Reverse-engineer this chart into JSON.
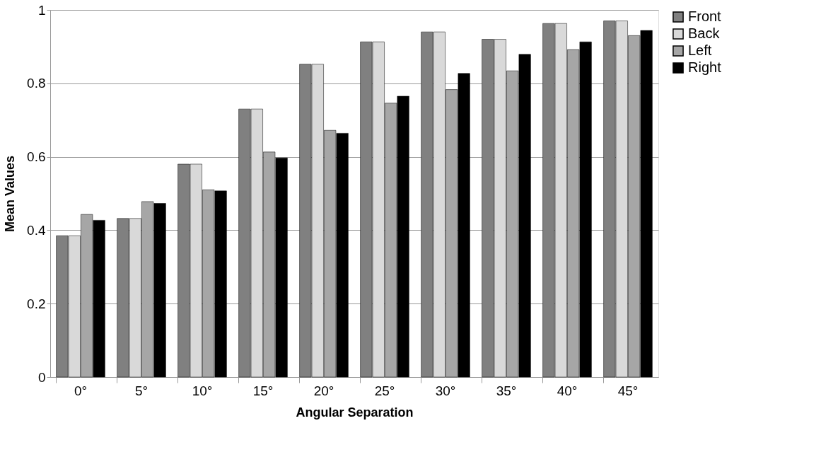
{
  "chart_data": {
    "type": "bar",
    "xlabel": "Angular Separation",
    "ylabel": "Mean Values",
    "categories": [
      "0°",
      "5°",
      "10°",
      "15°",
      "20°",
      "25°",
      "30°",
      "35°",
      "40°",
      "45°"
    ],
    "series": [
      {
        "name": "Front",
        "color": "#808080",
        "values": [
          0.385,
          0.432,
          0.58,
          0.73,
          0.852,
          0.913,
          0.94,
          0.92,
          0.963,
          0.97
        ]
      },
      {
        "name": "Back",
        "color": "#d9d9d9",
        "values": [
          0.385,
          0.432,
          0.58,
          0.73,
          0.852,
          0.913,
          0.94,
          0.92,
          0.963,
          0.97
        ]
      },
      {
        "name": "Left",
        "color": "#a6a6a6",
        "values": [
          0.443,
          0.478,
          0.51,
          0.613,
          0.672,
          0.746,
          0.783,
          0.834,
          0.892,
          0.93
        ]
      },
      {
        "name": "Right",
        "color": "#000000",
        "values": [
          0.427,
          0.473,
          0.507,
          0.597,
          0.664,
          0.765,
          0.827,
          0.879,
          0.913,
          0.944
        ]
      }
    ],
    "ylim": [
      0,
      1
    ],
    "yticks": [
      0,
      0.2,
      0.4,
      0.6,
      0.8,
      1
    ],
    "grid": "y",
    "legend": "right"
  }
}
